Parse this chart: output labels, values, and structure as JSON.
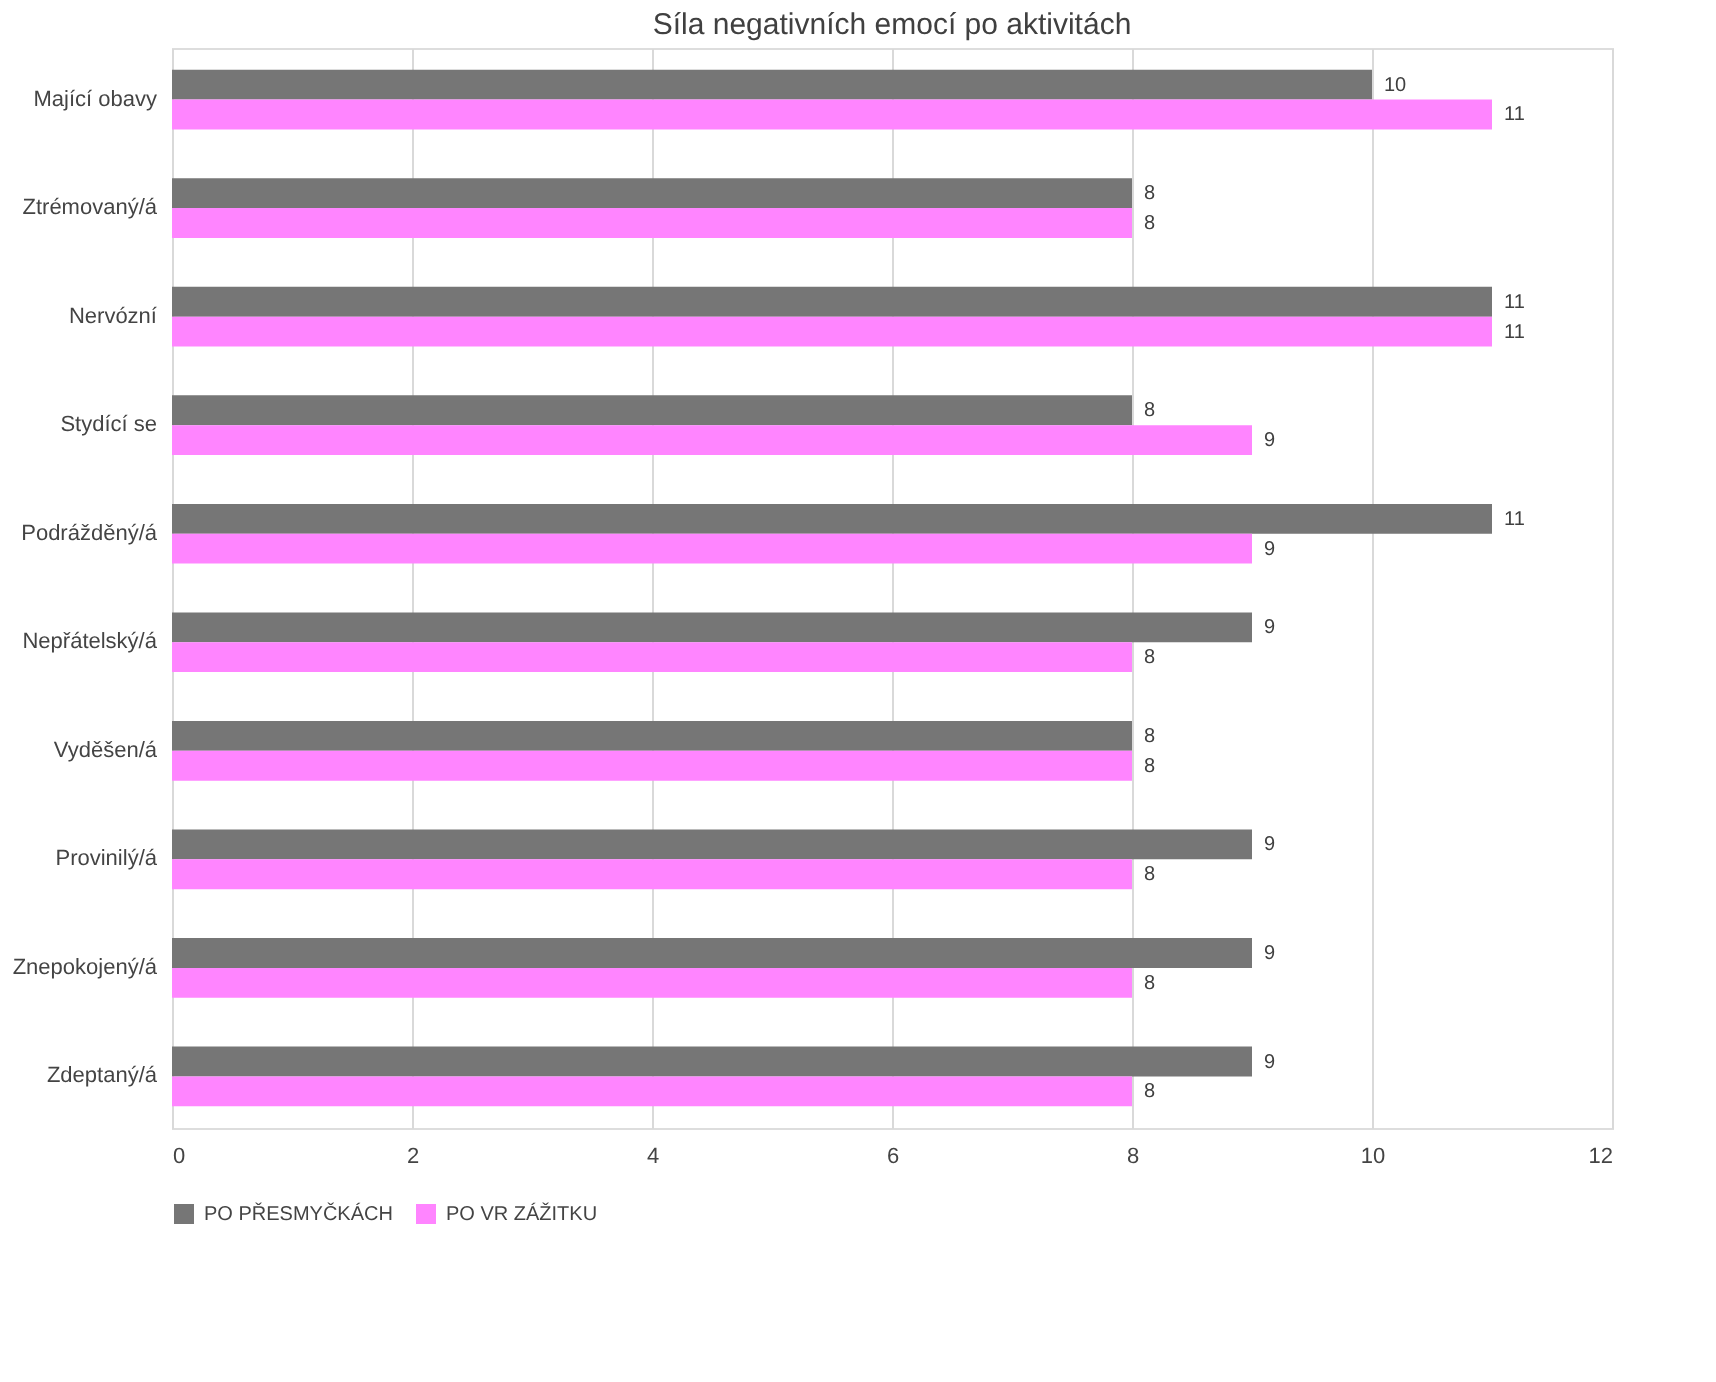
{
  "chart_data": {
    "type": "bar",
    "orientation": "horizontal",
    "title": "Síla negativních emocí po aktivitách",
    "categories": [
      "Mající obavy",
      "Ztrémovaný/á",
      "Nervózní",
      "Stydící se",
      "Podrážděný/á",
      "Nepřátelský/á",
      "Vyděšen/á",
      "Provinilý/á",
      "Znepokojený/á",
      "Zdeptaný/á"
    ],
    "series": [
      {
        "name": "PO PŘESMYČKÁCH",
        "color": "#767676",
        "values": [
          10,
          8,
          11,
          8,
          11,
          9,
          8,
          9,
          9,
          9
        ]
      },
      {
        "name": "PO VR ZÁŽITKU",
        "color": "#ff85ff",
        "values": [
          11,
          8,
          11,
          9,
          9,
          8,
          8,
          8,
          8,
          8
        ]
      }
    ],
    "xlim": [
      0,
      12
    ],
    "xticks": [
      0,
      2,
      4,
      6,
      8,
      10,
      12
    ],
    "grid": "x",
    "legend": "bottom",
    "data_labels": true
  }
}
